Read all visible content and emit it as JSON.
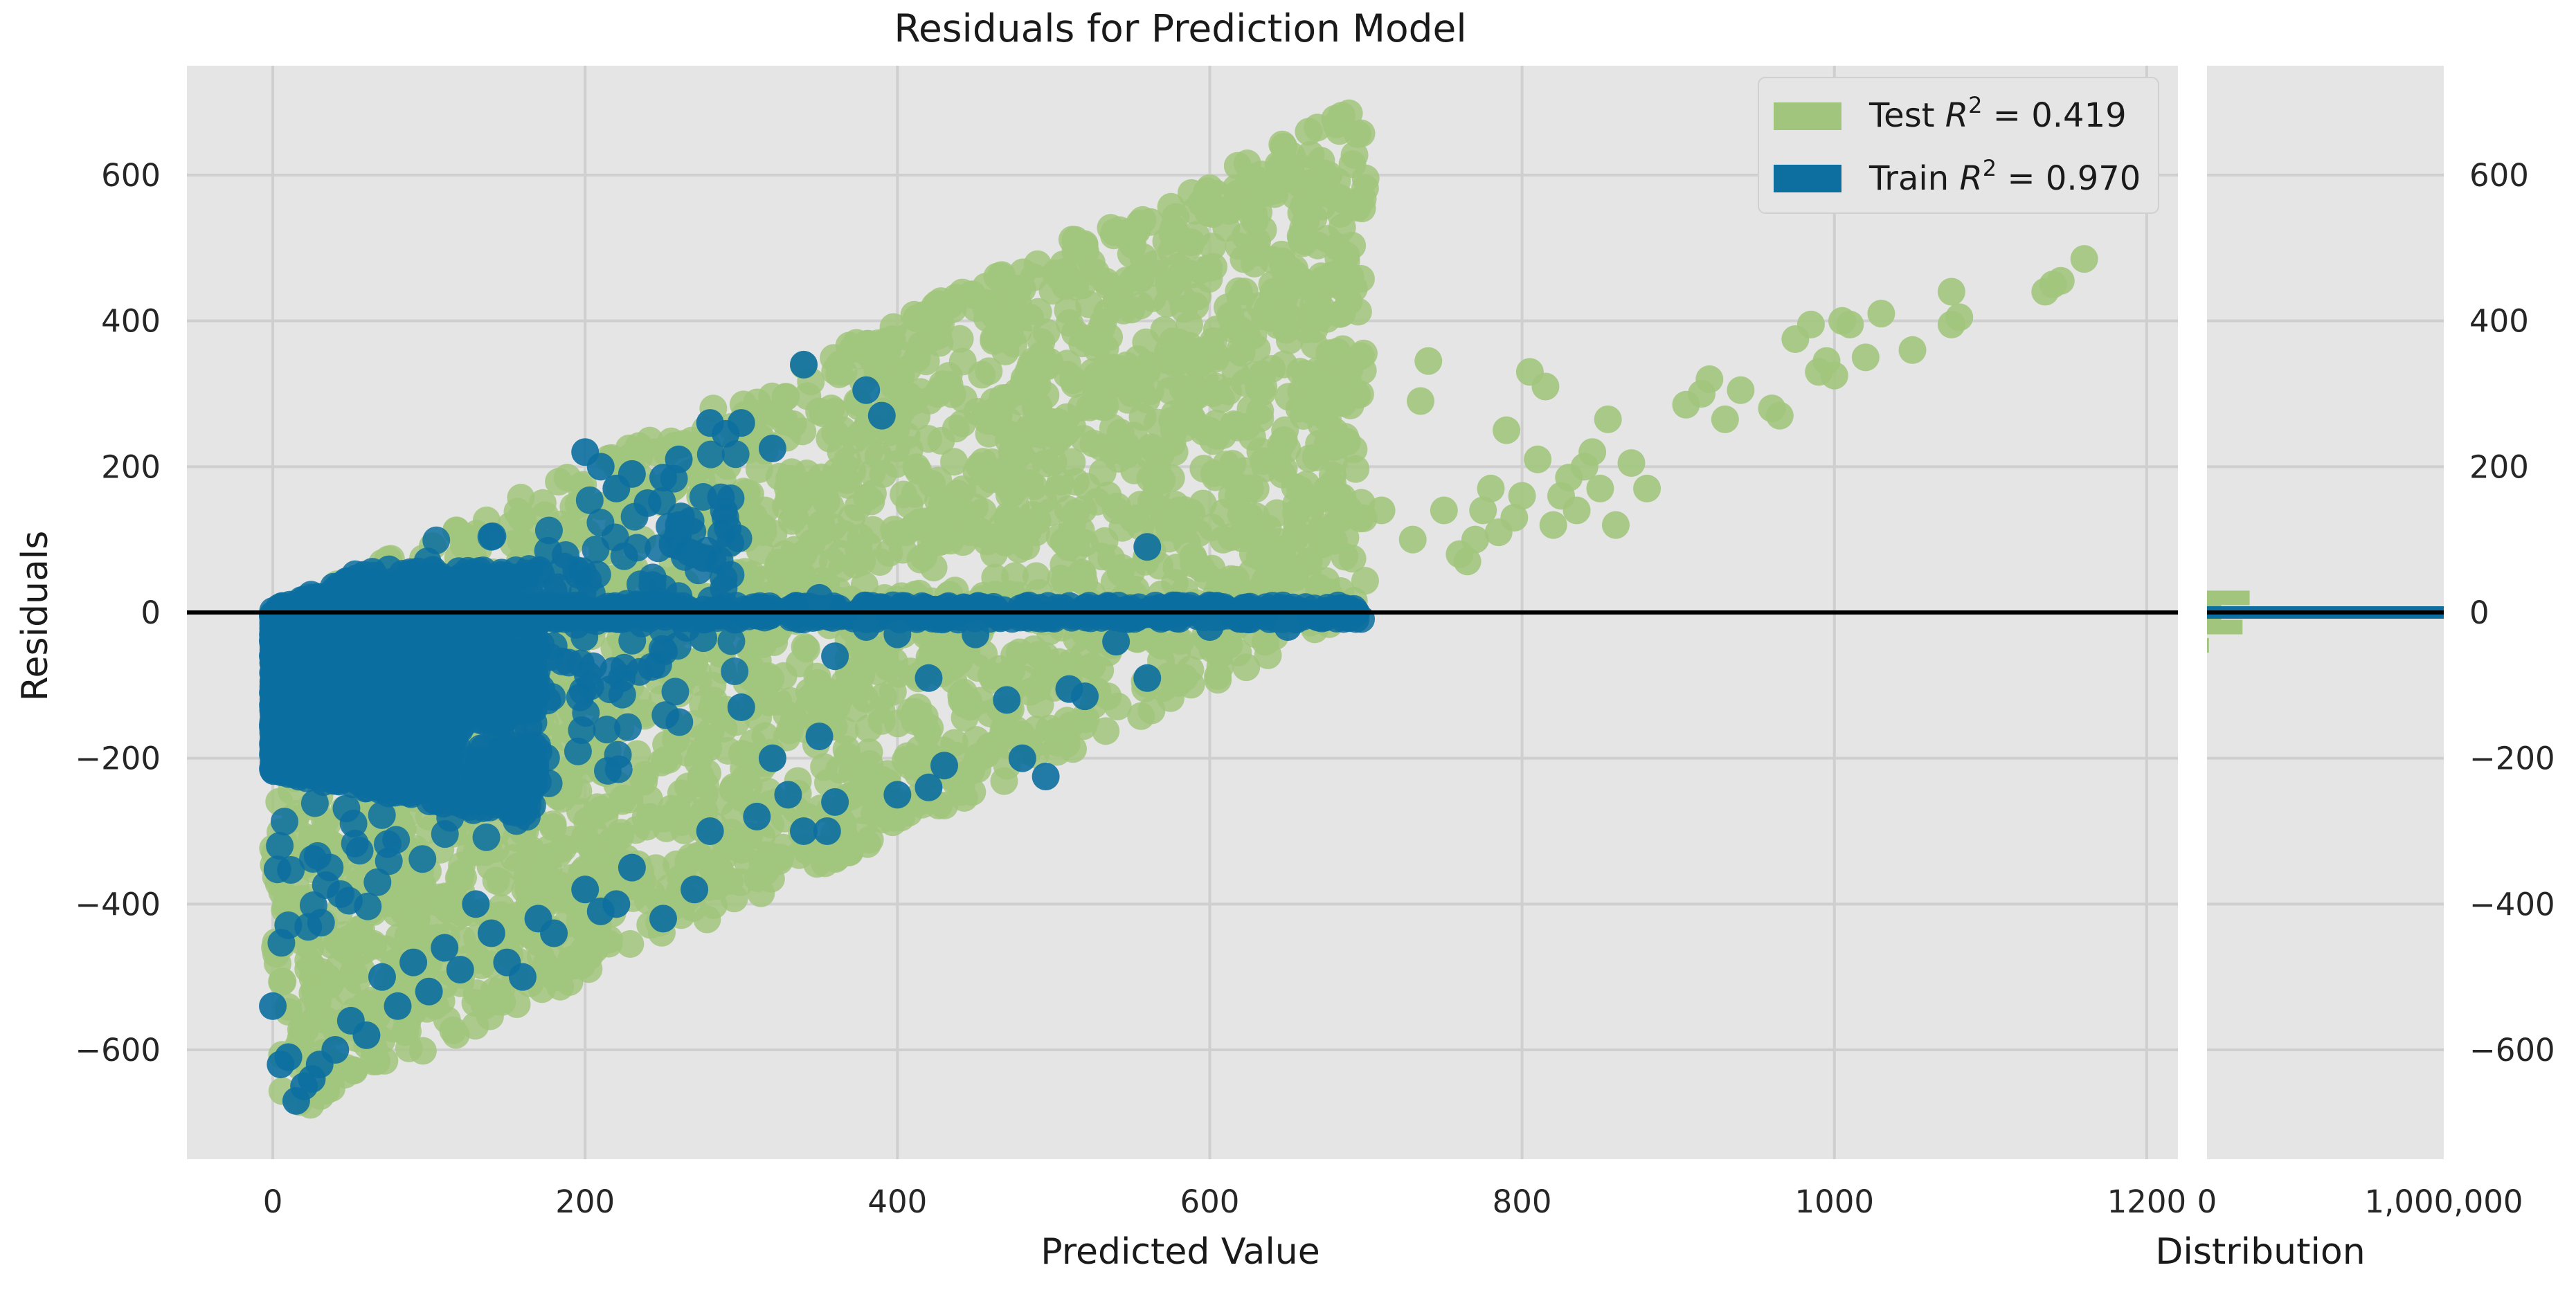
{
  "colors": {
    "background": "#ffffff",
    "panel": "#e5e5e5",
    "grid": "#cfcfcf",
    "test": "#a1c57c",
    "train": "#0c6fa0",
    "zero_line": "#000000"
  },
  "chart_data": {
    "type": "scatter",
    "title": "Residuals for Prediction Model",
    "xlabel": "Predicted Value",
    "ylabel": "Residuals",
    "xlim": [
      -55,
      1220
    ],
    "ylim": [
      -750,
      750
    ],
    "x_ticks": [
      0,
      200,
      400,
      600,
      800,
      1000,
      1200
    ],
    "y_ticks": [
      600,
      400,
      200,
      0,
      -200,
      -400,
      -600
    ],
    "y_tick_labels": [
      "600",
      "400",
      "200",
      "0",
      "−200",
      "−400",
      "−600"
    ],
    "zero_line": 0,
    "grid": true,
    "legend": {
      "position": "top-right",
      "entries": [
        {
          "series": "test",
          "prefix": "Test ",
          "r2_label": "R",
          "exponent": "2",
          "value_text": " = 0.419"
        },
        {
          "series": "train",
          "prefix": "Train ",
          "r2_label": "R",
          "exponent": "2",
          "value_text": " = 0.970"
        }
      ]
    },
    "series": [
      {
        "name": "Test",
        "r2": 0.419,
        "color": "#a1c57c",
        "description": "dense wedge between residual = x (upper) and residual = x - 700 (lower) for predicted 0-700, plus sparse points beyond 700",
        "sparse_points": [
          [
            710,
            140
          ],
          [
            730,
            100
          ],
          [
            740,
            345
          ],
          [
            735,
            290
          ],
          [
            750,
            140
          ],
          [
            760,
            80
          ],
          [
            765,
            70
          ],
          [
            770,
            100
          ],
          [
            775,
            140
          ],
          [
            780,
            170
          ],
          [
            785,
            110
          ],
          [
            790,
            250
          ],
          [
            795,
            130
          ],
          [
            800,
            160
          ],
          [
            805,
            330
          ],
          [
            810,
            210
          ],
          [
            815,
            310
          ],
          [
            820,
            120
          ],
          [
            825,
            160
          ],
          [
            830,
            185
          ],
          [
            835,
            140
          ],
          [
            840,
            200
          ],
          [
            845,
            220
          ],
          [
            850,
            170
          ],
          [
            855,
            265
          ],
          [
            860,
            120
          ],
          [
            870,
            205
          ],
          [
            880,
            170
          ],
          [
            905,
            285
          ],
          [
            915,
            300
          ],
          [
            920,
            320
          ],
          [
            930,
            265
          ],
          [
            940,
            305
          ],
          [
            960,
            280
          ],
          [
            965,
            270
          ],
          [
            975,
            375
          ],
          [
            985,
            395
          ],
          [
            990,
            330
          ],
          [
            995,
            345
          ],
          [
            1000,
            325
          ],
          [
            1005,
            400
          ],
          [
            1010,
            395
          ],
          [
            1020,
            350
          ],
          [
            1030,
            410
          ],
          [
            1050,
            360
          ],
          [
            1075,
            440
          ],
          [
            1075,
            395
          ],
          [
            1080,
            405
          ],
          [
            1135,
            440
          ],
          [
            1140,
            450
          ],
          [
            1145,
            455
          ],
          [
            1160,
            485
          ]
        ]
      },
      {
        "name": "Train",
        "r2": 0.97,
        "color": "#0c6fa0",
        "description": "dense cluster near predicted 0-300 bounded by residual = x above and a spread to about -600 below, plus a band along residual = 0 to predicted 700",
        "sparse_points": [
          [
            340,
            340
          ],
          [
            380,
            305
          ],
          [
            390,
            270
          ],
          [
            300,
            260
          ],
          [
            320,
            225
          ],
          [
            280,
            260
          ],
          [
            290,
            245
          ],
          [
            260,
            210
          ],
          [
            250,
            185
          ],
          [
            200,
            220
          ],
          [
            210,
            200
          ],
          [
            230,
            190
          ],
          [
            220,
            170
          ],
          [
            240,
            150
          ],
          [
            260,
            120
          ],
          [
            270,
            80
          ],
          [
            350,
            20
          ],
          [
            360,
            -60
          ],
          [
            380,
            -20
          ],
          [
            400,
            -30
          ],
          [
            420,
            -90
          ],
          [
            450,
            -30
          ],
          [
            470,
            -120
          ],
          [
            480,
            -200
          ],
          [
            495,
            -225
          ],
          [
            510,
            -105
          ],
          [
            520,
            -115
          ],
          [
            540,
            -40
          ],
          [
            560,
            90
          ],
          [
            560,
            -90
          ],
          [
            600,
            -20
          ],
          [
            650,
            -20
          ],
          [
            300,
            -130
          ],
          [
            320,
            -200
          ],
          [
            330,
            -250
          ],
          [
            310,
            -280
          ],
          [
            340,
            -300
          ],
          [
            355,
            -300
          ],
          [
            360,
            -260
          ],
          [
            400,
            -250
          ],
          [
            420,
            -240
          ],
          [
            430,
            -210
          ],
          [
            350,
            -170
          ],
          [
            280,
            -300
          ],
          [
            270,
            -380
          ],
          [
            250,
            -420
          ],
          [
            230,
            -350
          ],
          [
            220,
            -400
          ],
          [
            210,
            -410
          ],
          [
            200,
            -380
          ],
          [
            180,
            -440
          ],
          [
            170,
            -420
          ],
          [
            160,
            -500
          ],
          [
            150,
            -480
          ],
          [
            140,
            -440
          ],
          [
            130,
            -400
          ],
          [
            120,
            -490
          ],
          [
            110,
            -460
          ],
          [
            100,
            -520
          ],
          [
            90,
            -480
          ],
          [
            80,
            -540
          ],
          [
            70,
            -500
          ],
          [
            60,
            -580
          ],
          [
            50,
            -560
          ],
          [
            40,
            -600
          ],
          [
            30,
            -620
          ],
          [
            20,
            -650
          ],
          [
            10,
            -610
          ],
          [
            5,
            -620
          ],
          [
            15,
            -670
          ],
          [
            25,
            -640
          ],
          [
            0,
            -540
          ]
        ]
      }
    ]
  },
  "distribution": {
    "label": "Distribution",
    "x_ticks": [
      "0",
      "1,000,000"
    ],
    "xlim": [
      0,
      1000000
    ],
    "right_y_ticks": [
      "600",
      "400",
      "200",
      "0",
      "−200",
      "−400",
      "−600"
    ],
    "histogram": [
      {
        "series": "test",
        "bin_center": 20,
        "count": 180000
      },
      {
        "series": "test",
        "bin_center": 0,
        "count": 60000
      },
      {
        "series": "test",
        "bin_center": -20,
        "count": 150000
      },
      {
        "series": "test",
        "bin_center": -45,
        "count": 8000
      },
      {
        "series": "train",
        "bin_center": 0,
        "count": 1000000
      }
    ]
  }
}
